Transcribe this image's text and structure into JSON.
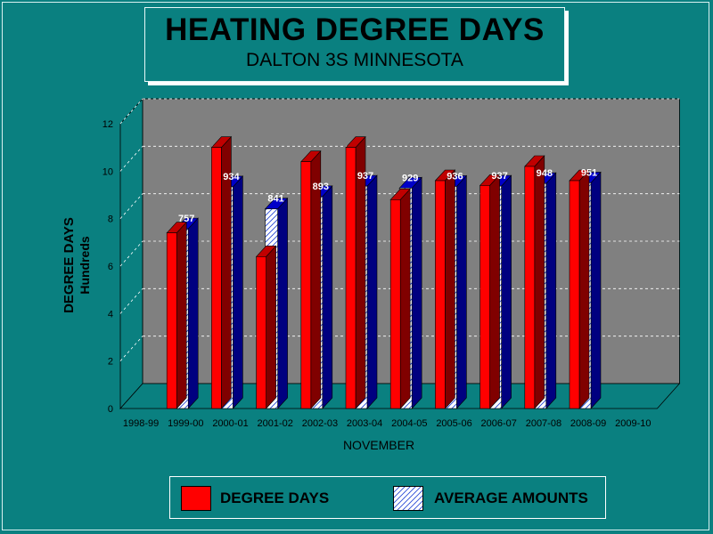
{
  "title": "HEATING DEGREE DAYS",
  "subtitle": "DALTON 3S MINNESOTA",
  "colors": {
    "background": "#0a8080",
    "plot_wall": "#808080",
    "degree_days_front": "#ff0000",
    "degree_days_top": "#c00000",
    "degree_days_side": "#800000",
    "average_front": "#ffffff",
    "average_pattern": "#2a4bd7",
    "average_top": "#0000c8",
    "average_side": "#000080"
  },
  "chart_data": {
    "type": "bar",
    "title": "HEATING DEGREE DAYS",
    "subtitle": "DALTON 3S MINNESOTA",
    "xlabel": "NOVEMBER",
    "ylabel": "DEGREE DAYS",
    "ylabel_unit": "Hundreds",
    "ylim": [
      0,
      12
    ],
    "yticks": [
      0,
      2,
      4,
      6,
      8,
      10,
      12
    ],
    "grid": true,
    "legend_position": "bottom",
    "categories": [
      "1998-99",
      "1999-00",
      "2000-01",
      "2001-02",
      "2002-03",
      "2003-04",
      "2004-05",
      "2005-06",
      "2006-07",
      "2007-08",
      "2008-09",
      "2009-10"
    ],
    "series": [
      {
        "name": "DEGREE DAYS",
        "values": [
          null,
          7.4,
          11.0,
          6.4,
          10.4,
          11.0,
          8.8,
          9.6,
          9.4,
          10.2,
          9.6,
          null
        ]
      },
      {
        "name": "AVERAGE AMOUNTS",
        "values": [
          null,
          7.57,
          9.34,
          8.41,
          8.93,
          9.37,
          9.29,
          9.36,
          9.37,
          9.48,
          9.51,
          null
        ],
        "labels": [
          "",
          "757",
          "934",
          "841",
          "893",
          "937",
          "929",
          "936",
          "937",
          "948",
          "951",
          ""
        ]
      }
    ]
  },
  "legend": {
    "items": [
      {
        "label": "DEGREE DAYS"
      },
      {
        "label": "AVERAGE AMOUNTS"
      }
    ]
  }
}
